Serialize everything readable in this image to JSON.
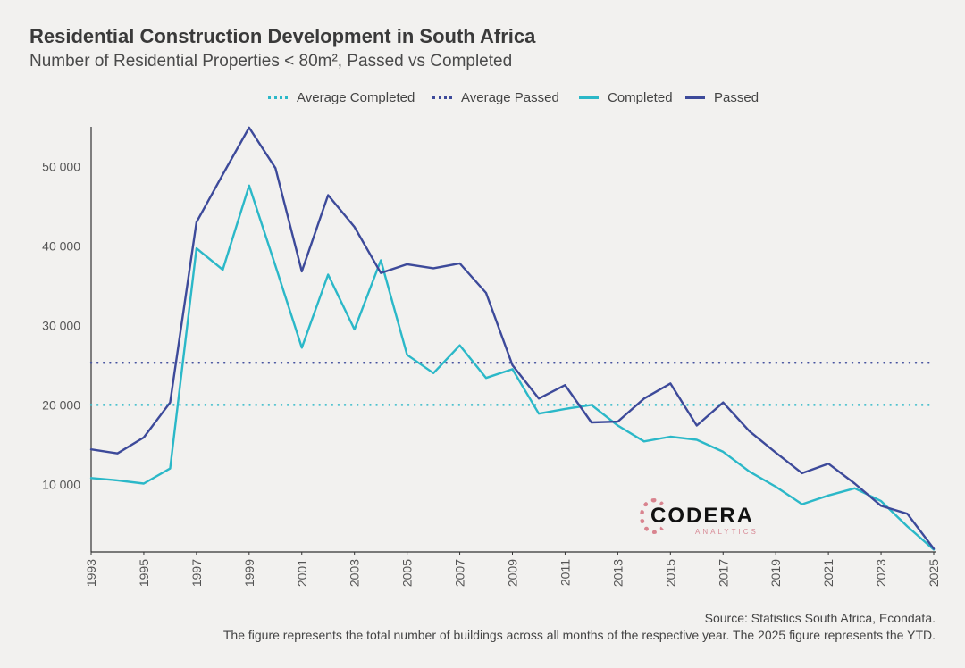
{
  "chart_data": {
    "type": "line",
    "title": "Residential Construction Development in South Africa",
    "subtitle": "Number of Residential Properties < 80m², Passed vs Completed",
    "x": [
      1993,
      1994,
      1995,
      1996,
      1997,
      1998,
      1999,
      2000,
      2001,
      2002,
      2003,
      2004,
      2005,
      2006,
      2007,
      2008,
      2009,
      2010,
      2011,
      2012,
      2013,
      2014,
      2015,
      2016,
      2017,
      2018,
      2019,
      2020,
      2021,
      2022,
      2023,
      2024,
      2025
    ],
    "x_tick_labels": [
      "1993",
      "1995",
      "1997",
      "1999",
      "2001",
      "2003",
      "2005",
      "2007",
      "2009",
      "2011",
      "2013",
      "2015",
      "2017",
      "2019",
      "2021",
      "2023",
      "2025"
    ],
    "y_tick_labels": [
      "10 000",
      "20 000",
      "30 000",
      "40 000",
      "50 000"
    ],
    "y_ticks": [
      10000,
      20000,
      30000,
      40000,
      50000
    ],
    "ylim": [
      1500,
      55000
    ],
    "xlim": [
      1993,
      2025
    ],
    "legend_position": "top-center",
    "series": [
      {
        "name": "Average Completed",
        "style": "dotted",
        "color": "#2bb8c8",
        "values": [
          20000,
          20000,
          20000,
          20000,
          20000,
          20000,
          20000,
          20000,
          20000,
          20000,
          20000,
          20000,
          20000,
          20000,
          20000,
          20000,
          20000,
          20000,
          20000,
          20000,
          20000,
          20000,
          20000,
          20000,
          20000,
          20000,
          20000,
          20000,
          20000,
          20000,
          20000,
          20000,
          20000
        ]
      },
      {
        "name": "Average Passed",
        "style": "dotted",
        "color": "#3d4a9a",
        "values": [
          25300,
          25300,
          25300,
          25300,
          25300,
          25300,
          25300,
          25300,
          25300,
          25300,
          25300,
          25300,
          25300,
          25300,
          25300,
          25300,
          25300,
          25300,
          25300,
          25300,
          25300,
          25300,
          25300,
          25300,
          25300,
          25300,
          25300,
          25300,
          25300,
          25300,
          25300,
          25300,
          25300
        ]
      },
      {
        "name": "Completed",
        "style": "solid",
        "color": "#2bb8c8",
        "values": [
          10800,
          10500,
          10100,
          12000,
          39700,
          37000,
          47600,
          37500,
          27200,
          36400,
          29500,
          38200,
          26300,
          24000,
          27500,
          23400,
          24500,
          18900,
          19500,
          20000,
          17400,
          15400,
          16000,
          15600,
          14100,
          11600,
          9700,
          7500,
          8600,
          9500,
          7900,
          4700,
          1800
        ]
      },
      {
        "name": "Passed",
        "style": "solid",
        "color": "#3d4a9a",
        "values": [
          14400,
          13900,
          15900,
          20300,
          43000,
          49000,
          54900,
          49800,
          36800,
          46400,
          42400,
          36600,
          37700,
          37200,
          37800,
          34100,
          25000,
          20800,
          22500,
          17800,
          17900,
          20800,
          22700,
          17400,
          20300,
          16700,
          14000,
          11400,
          12600,
          10100,
          7300,
          6300,
          1900
        ]
      }
    ]
  },
  "legend": {
    "items": [
      {
        "label": "Average Completed",
        "color": "#2bb8c8",
        "style": "dotted"
      },
      {
        "label": "Average Passed",
        "color": "#3d4a9a",
        "style": "dotted"
      },
      {
        "label": "Completed",
        "color": "#2bb8c8",
        "style": "solid"
      },
      {
        "label": "Passed",
        "color": "#3d4a9a",
        "style": "solid"
      }
    ]
  },
  "logo": {
    "word": "CODERA",
    "sub": "ANALYTICS"
  },
  "footer": {
    "source": "Source: Statistics South Africa, Econdata.",
    "note": "The figure represents the total number of buildings across all months of the respective year. The 2025 figure represents the YTD."
  }
}
